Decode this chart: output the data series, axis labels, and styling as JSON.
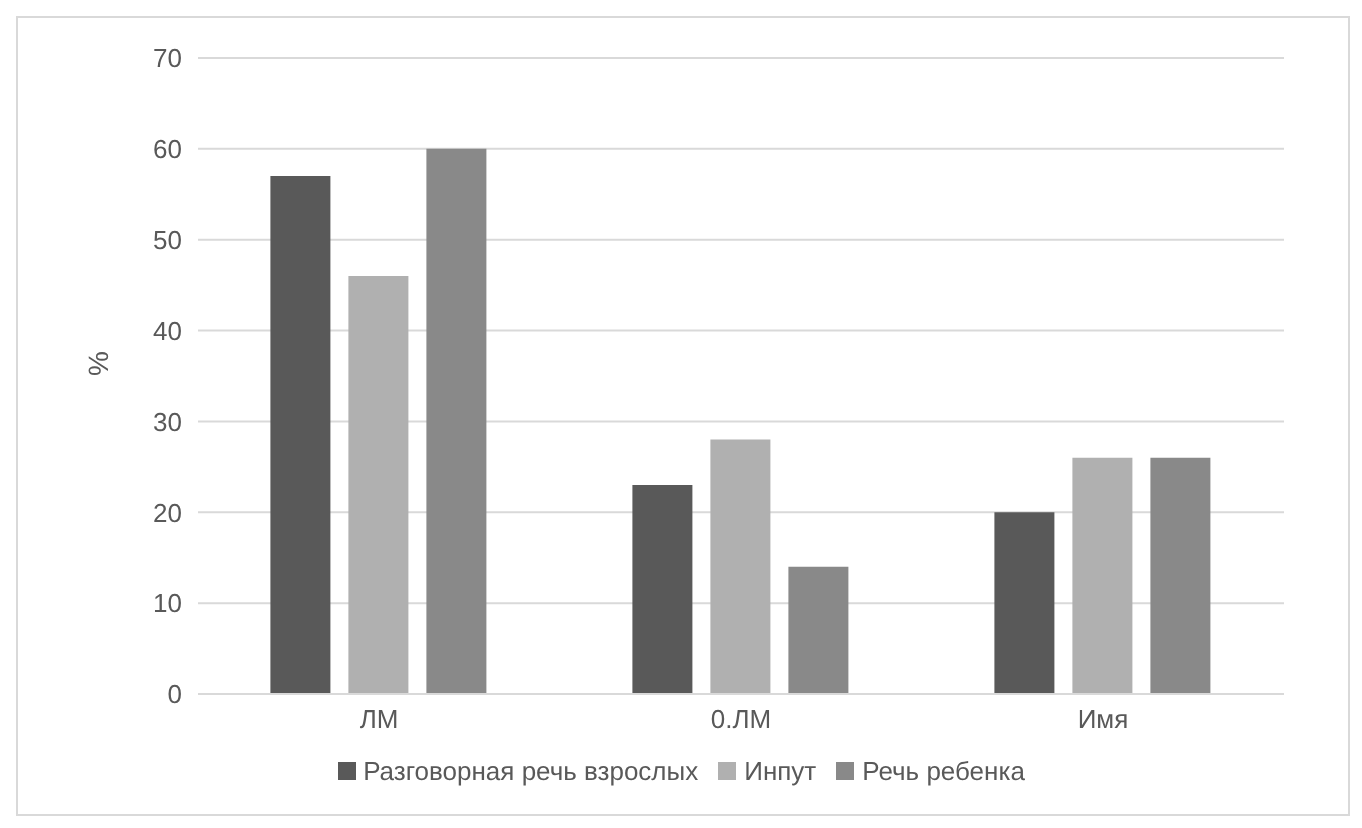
{
  "chart_data": {
    "type": "bar",
    "categories": [
      "ЛМ",
      "0.ЛМ",
      "Имя"
    ],
    "ylabel": "%",
    "ylim": [
      0,
      70
    ],
    "yticks": [
      0,
      10,
      20,
      30,
      40,
      50,
      60,
      70
    ],
    "grid": "y",
    "legend": "bottom",
    "series": [
      {
        "name": "Разговорная речь взрослых",
        "color": "#595959",
        "values": [
          57,
          23,
          20
        ]
      },
      {
        "name": "Инпут",
        "color": "#b0b0b0",
        "values": [
          46,
          28,
          26
        ]
      },
      {
        "name": "Речь ребенка",
        "color": "#898989",
        "values": [
          60,
          14,
          26
        ]
      }
    ]
  }
}
